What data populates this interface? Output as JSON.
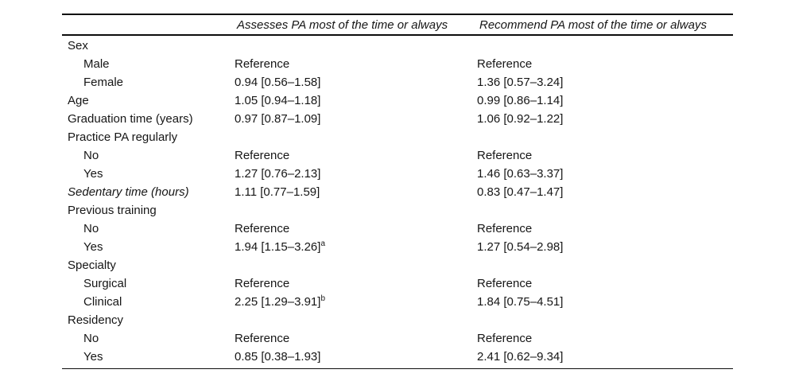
{
  "table": {
    "columns": [
      {
        "key": "label",
        "header": ""
      },
      {
        "key": "assesses",
        "header": "Assesses PA most of the time or always"
      },
      {
        "key": "recommend",
        "header": "Recommend PA most of the time or always"
      }
    ],
    "rows": [
      {
        "label": "Sex",
        "indent": false,
        "italic": false,
        "assesses": "",
        "assesses_sup": "",
        "recommend": ""
      },
      {
        "label": "Male",
        "indent": true,
        "italic": false,
        "assesses": "Reference",
        "assesses_sup": "",
        "recommend": "Reference"
      },
      {
        "label": "Female",
        "indent": true,
        "italic": false,
        "assesses": "0.94 [0.56–1.58]",
        "assesses_sup": "",
        "recommend": "1.36 [0.57–3.24]"
      },
      {
        "label": "Age",
        "indent": false,
        "italic": false,
        "assesses": "1.05 [0.94–1.18]",
        "assesses_sup": "",
        "recommend": "0.99 [0.86–1.14]"
      },
      {
        "label": "Graduation time (years)",
        "indent": false,
        "italic": false,
        "assesses": "0.97 [0.87–1.09]",
        "assesses_sup": "",
        "recommend": "1.06 [0.92–1.22]"
      },
      {
        "label": "Practice PA regularly",
        "indent": false,
        "italic": false,
        "assesses": "",
        "assesses_sup": "",
        "recommend": ""
      },
      {
        "label": "No",
        "indent": true,
        "italic": false,
        "assesses": "Reference",
        "assesses_sup": "",
        "recommend": "Reference"
      },
      {
        "label": "Yes",
        "indent": true,
        "italic": false,
        "assesses": "1.27 [0.76–2.13]",
        "assesses_sup": "",
        "recommend": "1.46 [0.63–3.37]"
      },
      {
        "label": "Sedentary time (hours)",
        "indent": false,
        "italic": true,
        "assesses": "1.11 [0.77–1.59]",
        "assesses_sup": "",
        "recommend": "0.83 [0.47–1.47]"
      },
      {
        "label": "Previous training",
        "indent": false,
        "italic": false,
        "assesses": "",
        "assesses_sup": "",
        "recommend": ""
      },
      {
        "label": "No",
        "indent": true,
        "italic": false,
        "assesses": "Reference",
        "assesses_sup": "",
        "recommend": "Reference"
      },
      {
        "label": "Yes",
        "indent": true,
        "italic": false,
        "assesses": "1.94 [1.15–3.26]",
        "assesses_sup": "a",
        "recommend": "1.27 [0.54–2.98]"
      },
      {
        "label": "Specialty",
        "indent": false,
        "italic": false,
        "assesses": "",
        "assesses_sup": "",
        "recommend": ""
      },
      {
        "label": "Surgical",
        "indent": true,
        "italic": false,
        "assesses": "Reference",
        "assesses_sup": "",
        "recommend": "Reference"
      },
      {
        "label": "Clinical",
        "indent": true,
        "italic": false,
        "assesses": "2.25 [1.29–3.91]",
        "assesses_sup": "b",
        "recommend": "1.84 [0.75–4.51]"
      },
      {
        "label": "Residency",
        "indent": false,
        "italic": false,
        "assesses": "",
        "assesses_sup": "",
        "recommend": ""
      },
      {
        "label": "No",
        "indent": true,
        "italic": false,
        "assesses": "Reference",
        "assesses_sup": "",
        "recommend": "Reference"
      },
      {
        "label": "Yes",
        "indent": true,
        "italic": false,
        "assesses": "0.85 [0.38–1.93]",
        "assesses_sup": "",
        "recommend": "2.41 [0.62–9.34]"
      }
    ]
  }
}
